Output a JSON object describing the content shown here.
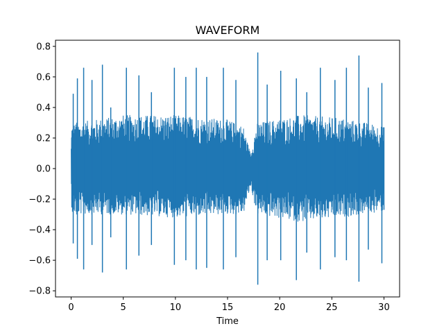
{
  "chart_data": {
    "type": "line",
    "title": "WAVEFORM",
    "xlabel": "Time",
    "ylabel": "",
    "xlim": [
      -1.5,
      31.5
    ],
    "ylim": [
      -0.84,
      0.84
    ],
    "xticks": [
      0,
      5,
      10,
      15,
      20,
      25,
      30
    ],
    "yticks": [
      -0.8,
      -0.6,
      -0.4,
      -0.2,
      0.0,
      0.2,
      0.4,
      0.6,
      0.8
    ],
    "grid": false,
    "legend": "none",
    "series": [
      {
        "color": "#1f77b4",
        "envelope": [
          {
            "t": 0.0,
            "min": -0.16,
            "max": 0.16
          },
          {
            "t": 0.05,
            "min": -0.3,
            "max": 0.3
          },
          {
            "t": 0.5,
            "min": -0.3,
            "max": 0.3
          },
          {
            "t": 5.0,
            "min": -0.3,
            "max": 0.35
          },
          {
            "t": 10.0,
            "min": -0.32,
            "max": 0.35
          },
          {
            "t": 15.0,
            "min": -0.3,
            "max": 0.32
          },
          {
            "t": 16.5,
            "min": -0.3,
            "max": 0.28
          },
          {
            "t": 17.2,
            "min": -0.12,
            "max": 0.1
          },
          {
            "t": 17.8,
            "min": -0.3,
            "max": 0.3
          },
          {
            "t": 22.0,
            "min": -0.35,
            "max": 0.35
          },
          {
            "t": 26.0,
            "min": -0.32,
            "max": 0.33
          },
          {
            "t": 29.9,
            "min": -0.28,
            "max": 0.28
          },
          {
            "t": 30.0,
            "min": -0.14,
            "max": 0.14
          }
        ],
        "peaks": [
          {
            "t": 0.2,
            "max": 0.49,
            "min": -0.49
          },
          {
            "t": 0.55,
            "max": 0.3,
            "min": -0.3
          },
          {
            "t": 0.6,
            "max": 0.59,
            "min": -0.59
          },
          {
            "t": 1.2,
            "max": 0.66,
            "min": -0.66
          },
          {
            "t": 2.0,
            "max": 0.58,
            "min": -0.5
          },
          {
            "t": 3.0,
            "max": 0.68,
            "min": -0.68
          },
          {
            "t": 3.8,
            "max": 0.4,
            "min": -0.45
          },
          {
            "t": 5.3,
            "max": 0.66,
            "min": -0.66
          },
          {
            "t": 6.5,
            "max": 0.61,
            "min": -0.57
          },
          {
            "t": 7.7,
            "max": 0.5,
            "min": -0.5
          },
          {
            "t": 9.9,
            "max": 0.66,
            "min": -0.63
          },
          {
            "t": 11.0,
            "max": 0.6,
            "min": -0.6
          },
          {
            "t": 12.0,
            "max": 0.66,
            "min": -0.66
          },
          {
            "t": 13.0,
            "max": 0.6,
            "min": -0.65
          },
          {
            "t": 14.6,
            "max": 0.66,
            "min": -0.66
          },
          {
            "t": 15.8,
            "max": 0.58,
            "min": -0.58
          },
          {
            "t": 17.9,
            "max": 0.76,
            "min": -0.76
          },
          {
            "t": 18.8,
            "max": 0.55,
            "min": -0.6
          },
          {
            "t": 20.1,
            "max": 0.64,
            "min": -0.6
          },
          {
            "t": 21.6,
            "max": 0.59,
            "min": -0.73
          },
          {
            "t": 22.6,
            "max": 0.5,
            "min": -0.55
          },
          {
            "t": 23.9,
            "max": 0.66,
            "min": -0.66
          },
          {
            "t": 25.3,
            "max": 0.58,
            "min": -0.58
          },
          {
            "t": 26.4,
            "max": 0.66,
            "min": -0.6
          },
          {
            "t": 27.6,
            "max": 0.74,
            "min": -0.74
          },
          {
            "t": 28.5,
            "max": 0.53,
            "min": -0.53
          },
          {
            "t": 29.8,
            "max": 0.56,
            "min": -0.62
          },
          {
            "t": 30.0,
            "max": 0.27,
            "min": -0.27
          }
        ]
      }
    ]
  }
}
